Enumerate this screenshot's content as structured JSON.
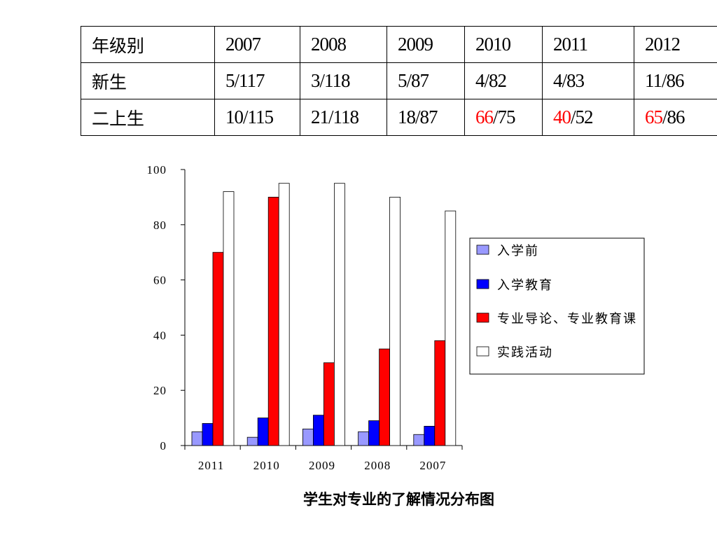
{
  "table": {
    "header": [
      "年级别",
      "2007",
      "2008",
      "2009",
      "2010",
      "2011",
      "2012"
    ],
    "rows": [
      {
        "label": "新生",
        "cells": [
          {
            "num": "5",
            "rest": "/117"
          },
          {
            "num": "3",
            "rest": "/118"
          },
          {
            "num": "5",
            "rest": "/87"
          },
          {
            "num": "4",
            "rest": "/82"
          },
          {
            "num": "4",
            "rest": "/83"
          },
          {
            "num": "11",
            "rest": "/86"
          }
        ]
      },
      {
        "label": "二上生",
        "cells": [
          {
            "num": "10",
            "rest": "/115"
          },
          {
            "num": "21",
            "rest": "/118"
          },
          {
            "num": "18",
            "rest": "/87"
          },
          {
            "num": "66",
            "rest": "/75",
            "highlight": true
          },
          {
            "num": "40",
            "rest": "/52",
            "highlight": true
          },
          {
            "num": "65",
            "rest": "/86",
            "highlight": true
          }
        ]
      }
    ],
    "highlight_color": "#ff0000"
  },
  "chart_data": {
    "type": "bar",
    "title": "学生对专业的了解情况分布图",
    "categories": [
      "2011",
      "2010",
      "2009",
      "2008",
      "2007"
    ],
    "series": [
      {
        "name": "入学前",
        "color": "#9999ff",
        "values": [
          5,
          3,
          6,
          5,
          4
        ]
      },
      {
        "name": "入学教育",
        "color": "#0000ff",
        "values": [
          8,
          10,
          11,
          9,
          7
        ]
      },
      {
        "name": "专业导论、专业教育课",
        "color": "#ff0000",
        "values": [
          70,
          90,
          30,
          35,
          38
        ]
      },
      {
        "name": "实践活动",
        "color": "#ffffff",
        "values": [
          92,
          95,
          95,
          90,
          85
        ]
      }
    ],
    "ylim": [
      0,
      100
    ],
    "yticks": [
      0,
      20,
      40,
      60,
      80,
      100
    ],
    "xlabel": "",
    "ylabel": "",
    "grid": false,
    "legend": "right"
  }
}
